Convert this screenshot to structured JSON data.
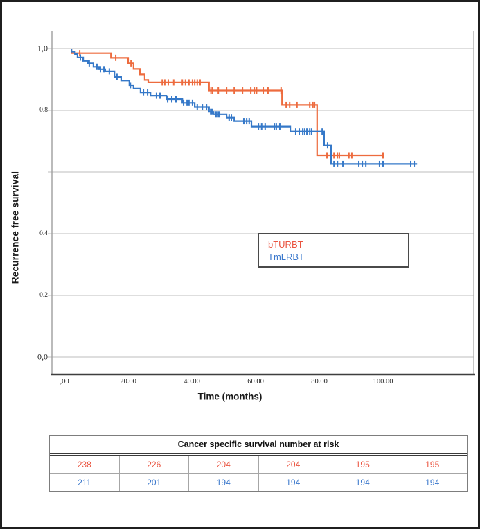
{
  "chart_data": {
    "type": "line",
    "subtype": "kaplan-meier-step",
    "title": "",
    "ylabel": "Recurrence free survival",
    "xlabel": "Time (months)",
    "grid": true,
    "xlim": [
      0,
      128
    ],
    "ylim": [
      0,
      1.05
    ],
    "x_ticks": [
      {
        "v": 0,
        "label": ",00"
      },
      {
        "v": 20,
        "label": "20.00"
      },
      {
        "v": 40,
        "label": "40.00"
      },
      {
        "v": 60,
        "label": "60.00"
      },
      {
        "v": 80,
        "label": "80.00"
      },
      {
        "v": 100,
        "label": "100.00"
      }
    ],
    "y_ticks": [
      {
        "v": 1.0,
        "label": "1,0"
      },
      {
        "v": 0.8,
        "label": "0.8"
      },
      {
        "v": 0.4,
        "label": "0.4"
      },
      {
        "v": 0.2,
        "label": "0.2"
      },
      {
        "v": 0.0,
        "label": "0,0"
      }
    ],
    "y_gridline_values": [
      1.0,
      0.8,
      0.6,
      0.4,
      0.2,
      0.0
    ],
    "legend": {
      "position": "center",
      "entries": [
        {
          "label": "bTURBT",
          "color": "#EA5440"
        },
        {
          "label": "TmLRBT",
          "color": "#3B78CC"
        }
      ]
    },
    "series": [
      {
        "name": "bTURBT",
        "color": "#ED6B3E",
        "end_month": 100.4,
        "steps": [
          [
            2.2,
            1.0
          ],
          [
            2.2,
            0.985
          ],
          [
            14.6,
            0.97
          ],
          [
            20.0,
            0.952
          ],
          [
            21.7,
            0.934
          ],
          [
            23.7,
            0.916
          ],
          [
            25.2,
            0.898
          ],
          [
            26.3,
            0.89
          ],
          [
            45.4,
            0.864
          ],
          [
            68.3,
            0.817
          ],
          [
            79.3,
            0.654
          ]
        ],
        "censors": [
          [
            4.8,
            0.985
          ],
          [
            16.1,
            0.97
          ],
          [
            20.9,
            0.952
          ],
          [
            30.7,
            0.89
          ],
          [
            31.5,
            0.89
          ],
          [
            32.6,
            0.89
          ],
          [
            34.3,
            0.89
          ],
          [
            37.0,
            0.89
          ],
          [
            38.0,
            0.89
          ],
          [
            39.1,
            0.89
          ],
          [
            40.2,
            0.89
          ],
          [
            40.9,
            0.89
          ],
          [
            41.7,
            0.89
          ],
          [
            42.6,
            0.89
          ],
          [
            46.0,
            0.864
          ],
          [
            46.5,
            0.864
          ],
          [
            48.3,
            0.864
          ],
          [
            50.9,
            0.864
          ],
          [
            53.3,
            0.864
          ],
          [
            55.9,
            0.864
          ],
          [
            58.5,
            0.864
          ],
          [
            59.6,
            0.864
          ],
          [
            60.3,
            0.864
          ],
          [
            62.4,
            0.864
          ],
          [
            63.9,
            0.864
          ],
          [
            68.0,
            0.864
          ],
          [
            69.6,
            0.817
          ],
          [
            70.7,
            0.817
          ],
          [
            73.0,
            0.817
          ],
          [
            77.0,
            0.817
          ],
          [
            78.0,
            0.817
          ],
          [
            78.5,
            0.817
          ],
          [
            82.4,
            0.654
          ],
          [
            83.5,
            0.654
          ],
          [
            84.6,
            0.654
          ],
          [
            85.7,
            0.654
          ],
          [
            86.3,
            0.654
          ],
          [
            89.3,
            0.654
          ],
          [
            90.2,
            0.654
          ],
          [
            100.0,
            0.654
          ]
        ]
      },
      {
        "name": "TmLRBT",
        "color": "#3578C8",
        "end_month": 110.7,
        "steps": [
          [
            2.2,
            1.0
          ],
          [
            2.2,
            0.99
          ],
          [
            3.3,
            0.982
          ],
          [
            4.1,
            0.971
          ],
          [
            5.9,
            0.96
          ],
          [
            7.4,
            0.952
          ],
          [
            9.1,
            0.941
          ],
          [
            10.9,
            0.933
          ],
          [
            12.8,
            0.926
          ],
          [
            15.7,
            0.908
          ],
          [
            17.8,
            0.896
          ],
          [
            20.4,
            0.881
          ],
          [
            21.7,
            0.87
          ],
          [
            23.9,
            0.858
          ],
          [
            27.0,
            0.847
          ],
          [
            32.0,
            0.836
          ],
          [
            37.0,
            0.824
          ],
          [
            40.9,
            0.81
          ],
          [
            45.4,
            0.795
          ],
          [
            46.8,
            0.787
          ],
          [
            50.9,
            0.776
          ],
          [
            53.3,
            0.765
          ],
          [
            58.7,
            0.747
          ],
          [
            70.9,
            0.731
          ],
          [
            81.5,
            0.686
          ],
          [
            83.7,
            0.626
          ]
        ],
        "censors": [
          [
            5.0,
            0.971
          ],
          [
            7.8,
            0.952
          ],
          [
            10.2,
            0.941
          ],
          [
            11.3,
            0.933
          ],
          [
            12.4,
            0.933
          ],
          [
            14.1,
            0.926
          ],
          [
            16.5,
            0.908
          ],
          [
            20.7,
            0.881
          ],
          [
            24.8,
            0.858
          ],
          [
            26.1,
            0.858
          ],
          [
            28.9,
            0.847
          ],
          [
            30.0,
            0.847
          ],
          [
            32.4,
            0.836
          ],
          [
            33.7,
            0.836
          ],
          [
            35.0,
            0.836
          ],
          [
            37.4,
            0.824
          ],
          [
            38.5,
            0.824
          ],
          [
            39.1,
            0.824
          ],
          [
            40.2,
            0.824
          ],
          [
            41.7,
            0.81
          ],
          [
            43.3,
            0.81
          ],
          [
            44.6,
            0.81
          ],
          [
            45.9,
            0.795
          ],
          [
            46.3,
            0.795
          ],
          [
            47.6,
            0.787
          ],
          [
            48.3,
            0.787
          ],
          [
            48.7,
            0.787
          ],
          [
            51.7,
            0.776
          ],
          [
            52.4,
            0.776
          ],
          [
            56.3,
            0.765
          ],
          [
            57.2,
            0.765
          ],
          [
            58.0,
            0.765
          ],
          [
            60.9,
            0.747
          ],
          [
            61.9,
            0.747
          ],
          [
            63.0,
            0.747
          ],
          [
            65.9,
            0.747
          ],
          [
            66.5,
            0.747
          ],
          [
            67.6,
            0.747
          ],
          [
            72.6,
            0.731
          ],
          [
            73.7,
            0.731
          ],
          [
            74.8,
            0.731
          ],
          [
            75.4,
            0.731
          ],
          [
            76.1,
            0.731
          ],
          [
            77.0,
            0.731
          ],
          [
            77.6,
            0.731
          ],
          [
            80.9,
            0.731
          ],
          [
            82.6,
            0.686
          ],
          [
            84.6,
            0.626
          ],
          [
            85.7,
            0.626
          ],
          [
            87.4,
            0.626
          ],
          [
            92.4,
            0.626
          ],
          [
            93.5,
            0.626
          ],
          [
            94.6,
            0.626
          ],
          [
            98.9,
            0.626
          ],
          [
            100.0,
            0.626
          ],
          [
            108.7,
            0.626
          ],
          [
            109.8,
            0.626
          ]
        ]
      }
    ]
  },
  "risk_table": {
    "title": "Cancer specific survival number at risk",
    "rows": [
      {
        "name": "bTURBT",
        "color": "#EA5440",
        "values": [
          "238",
          "226",
          "204",
          "204",
          "195",
          "195"
        ]
      },
      {
        "name": "TmLRBT",
        "color": "#3B78CC",
        "values": [
          "211",
          "201",
          "194",
          "194",
          "194",
          "194"
        ]
      }
    ]
  }
}
